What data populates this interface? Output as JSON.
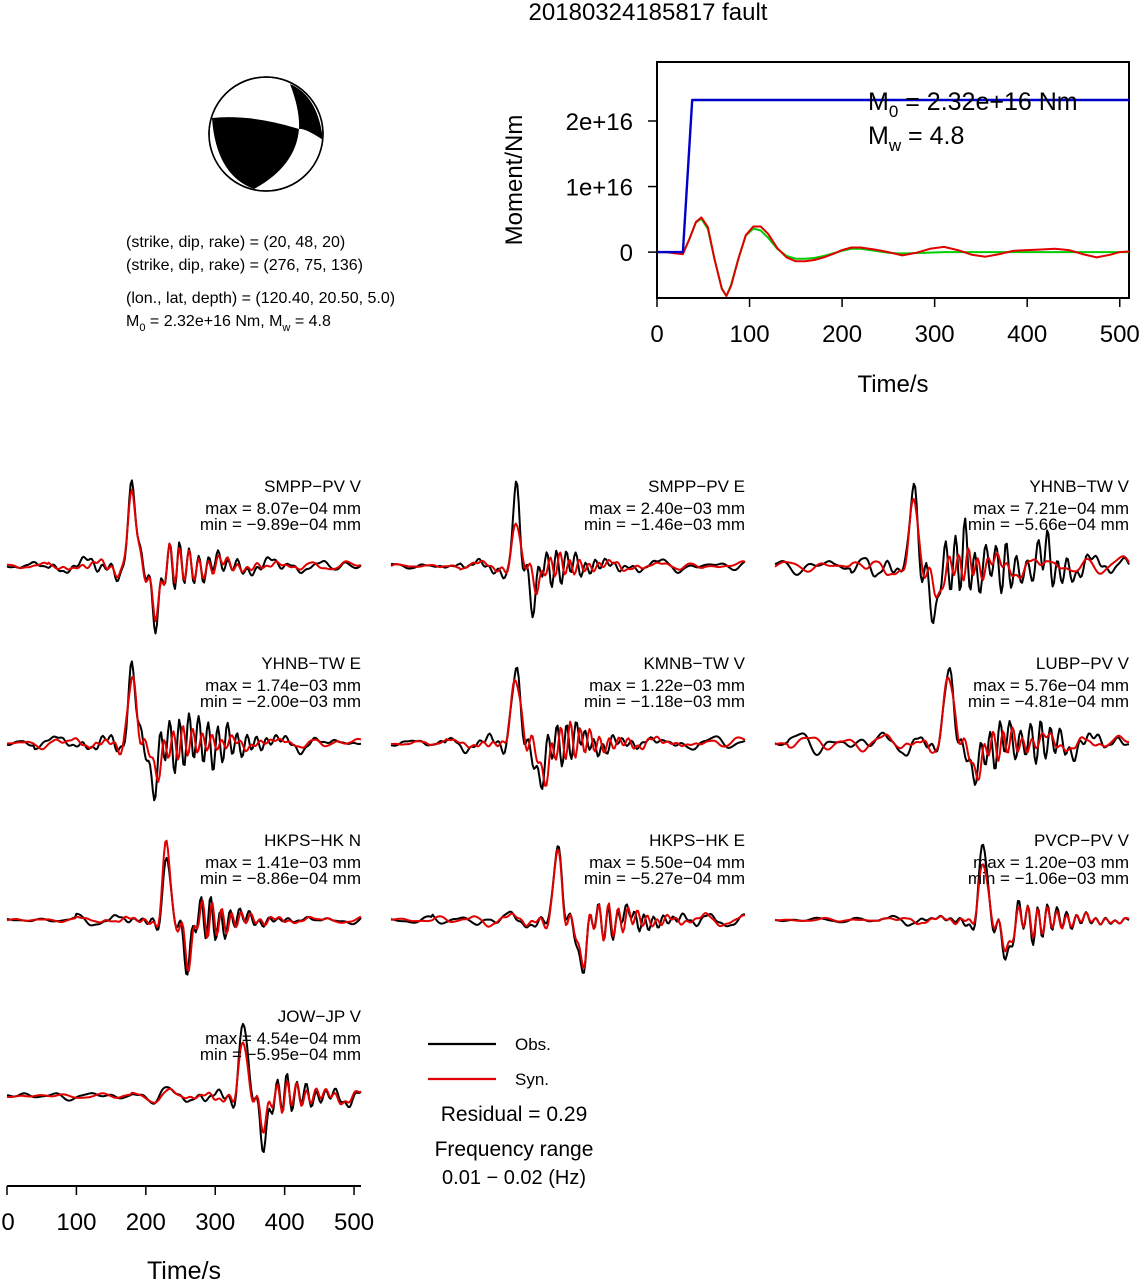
{
  "title": "20180324185817 fault",
  "event": {
    "nodal_plane_1": "(strike, dip, rake) = (20, 48, 20)",
    "nodal_plane_2": "(strike, dip, rake) = (276, 75, 136)",
    "location": "(lon., lat, depth) = (120.40, 20.50, 5.0)",
    "moment_prefix": "M",
    "moment_sub": "0",
    "moment_value": " = 2.32e+16 Nm, M",
    "mw_sub": "w",
    "mw_value": " = 4.8"
  },
  "chart_data": [
    {
      "type": "line",
      "name": "moment-time-function",
      "xlabel": "Time/s",
      "ylabel": "Moment/Nm",
      "xlim": [
        0,
        510
      ],
      "ylim": [
        -7000000000000000.0,
        2.9e+16
      ],
      "xticks": [
        0,
        100,
        200,
        300,
        400,
        500
      ],
      "yticks": [
        0,
        1e+16,
        2e+16
      ],
      "ytick_labels": [
        "0",
        "1e+16",
        "2e+16"
      ],
      "annotation_m0": {
        "prefix": "M",
        "sub": "0",
        "text": " = 2.32e+16 Nm"
      },
      "annotation_mw": {
        "prefix": "M",
        "sub": "w",
        "text": " = 4.8"
      },
      "colors": {
        "cumulative": "#0000cc",
        "observed": "#00cc00",
        "synthetic": "#e00000"
      },
      "series": [
        {
          "key": "cumulative",
          "x": [
            0,
            20,
            28,
            38,
            510
          ],
          "y": [
            0,
            0,
            0,
            2.32e+16,
            2.32e+16
          ]
        },
        {
          "key": "observed",
          "x": [
            0,
            10,
            20,
            28,
            35,
            42,
            48,
            55,
            62,
            70,
            75,
            80,
            88,
            96,
            104,
            112,
            120,
            130,
            140,
            150,
            160,
            170,
            180,
            190,
            200,
            210,
            220,
            235,
            250,
            260,
            270,
            290,
            310,
            330,
            360,
            400,
            450,
            510
          ],
          "y": [
            0,
            0,
            -100000000000000.0,
            -200000000000000.0,
            2000000000000000.0,
            4500000000000000.0,
            5100000000000000.0,
            3500000000000000.0,
            -1000000000000000.0,
            -5500000000000000.0,
            -6700000000000000.0,
            -5000000000000000.0,
            -1000000000000000.0,
            2500000000000000.0,
            3600000000000000.0,
            3300000000000000.0,
            2200000000000000.0,
            500000000000000.0,
            -600000000000000.0,
            -1000000000000000.0,
            -1000000000000000.0,
            -900000000000000.0,
            -600000000000000.0,
            -200000000000000.0,
            200000000000000.0,
            500000000000000.0,
            500000000000000.0,
            200000000000000.0,
            -100000000000000.0,
            -200000000000000.0,
            -200000000000000.0,
            -100000000000000.0,
            0,
            0,
            0,
            0,
            0,
            0
          ]
        },
        {
          "key": "synthetic",
          "x": [
            0,
            10,
            20,
            28,
            35,
            42,
            48,
            55,
            62,
            70,
            75,
            80,
            88,
            96,
            104,
            112,
            120,
            130,
            140,
            150,
            160,
            170,
            180,
            190,
            200,
            210,
            220,
            235,
            250,
            265,
            280,
            295,
            310,
            325,
            340,
            355,
            370,
            385,
            400,
            415,
            430,
            445,
            460,
            475,
            490,
            500,
            510
          ],
          "y": [
            0,
            0,
            -200000000000000.0,
            -300000000000000.0,
            2000000000000000.0,
            4600000000000000.0,
            5300000000000000.0,
            3800000000000000.0,
            -1000000000000000.0,
            -5600000000000000.0,
            -6700000000000000.0,
            -5200000000000000.0,
            -1000000000000000.0,
            2600000000000000.0,
            3900000000000000.0,
            3900000000000000.0,
            2800000000000000.0,
            600000000000000.0,
            -800000000000000.0,
            -1400000000000000.0,
            -1400000000000000.0,
            -1200000000000000.0,
            -800000000000000.0,
            -300000000000000.0,
            300000000000000.0,
            700000000000000.0,
            700000000000000.0,
            400000000000000.0,
            0,
            -500000000000000.0,
            -100000000000000.0,
            500000000000000.0,
            800000000000000.0,
            300000000000000.0,
            -400000000000000.0,
            -700000000000000.0,
            -300000000000000.0,
            200000000000000.0,
            300000000000000.0,
            400000000000000.0,
            500000000000000.0,
            300000000000000.0,
            -300000000000000.0,
            -800000000000000.0,
            -400000000000000.0,
            0,
            100000000000000.0
          ]
        }
      ]
    },
    {
      "type": "line",
      "name": "waveform-fits",
      "xlabel": "Time/s",
      "xlim": [
        0,
        510
      ],
      "xticks": [
        0,
        100,
        200,
        300,
        400,
        500
      ],
      "legend": {
        "observed": "Obs.",
        "synthetic": "Syn.",
        "placement": "bottom-center"
      },
      "residual": "Residual = 0.29",
      "frequency_label": "Frequency range",
      "frequency_range": "0.01 − 0.02 (Hz)",
      "colors": {
        "observed": "#000000",
        "synthetic": "#e00000"
      },
      "traces": [
        {
          "station": "SMPP−PV V",
          "max": "max = 8.07e−04 mm",
          "min": "min = −9.89e−04 mm",
          "comps_obs": [
            [
              180,
              0.95,
              13,
              0
            ],
            [
              215,
              -0.65,
              14,
              0
            ],
            [
              245,
              0.3,
              20,
              1
            ]
          ],
          "comps_syn": [
            [
              180,
              0.85,
              14,
              0
            ],
            [
              215,
              -0.55,
              15,
              0
            ],
            [
              245,
              0.25,
              18,
              1
            ]
          ],
          "noise": 0.07,
          "onset": 60,
          "seed": 1
        },
        {
          "station": "SMPP−PV E",
          "max": "max = 2.40e−03 mm",
          "min": "min = −1.46e−03 mm",
          "comps_obs": [
            [
              180,
              0.95,
              10,
              0
            ],
            [
              205,
              -0.55,
              10,
              0
            ],
            [
              235,
              0.25,
              16,
              1
            ]
          ],
          "comps_syn": [
            [
              180,
              0.6,
              11,
              0
            ],
            [
              210,
              -0.3,
              12,
              0
            ],
            [
              240,
              0.15,
              16,
              1
            ]
          ],
          "noise": 0.06,
          "onset": 100,
          "seed": 2
        },
        {
          "station": "YHNB−TW V",
          "max": "max = 7.21e−04 mm",
          "min": "min = −5.66e−04 mm",
          "comps_obs": [
            [
              200,
              0.9,
              10,
              0
            ],
            [
              230,
              -0.6,
              10,
              0
            ],
            [
              270,
              0.5,
              14,
              1
            ],
            [
              330,
              0.4,
              12,
              1
            ],
            [
              390,
              0.35,
              12,
              1
            ]
          ],
          "comps_syn": [
            [
              200,
              0.7,
              12,
              0
            ],
            [
              235,
              -0.4,
              12,
              0
            ],
            [
              275,
              0.2,
              14,
              1
            ]
          ],
          "noise": 0.14,
          "onset": 110,
          "seed": 3
        },
        {
          "station": "YHNB−TW E",
          "max": "max = 1.74e−03 mm",
          "min": "min = −2.00e−03 mm",
          "comps_obs": [
            [
              180,
              0.95,
              12,
              0
            ],
            [
              210,
              -0.55,
              12,
              0
            ],
            [
              245,
              0.3,
              18,
              1
            ],
            [
              300,
              0.2,
              16,
              1
            ]
          ],
          "comps_syn": [
            [
              180,
              0.8,
              13,
              0
            ],
            [
              215,
              -0.45,
              13,
              0
            ],
            [
              250,
              0.22,
              18,
              1
            ]
          ],
          "noise": 0.07,
          "onset": 40,
          "seed": 4
        },
        {
          "station": "KMNB−TW V",
          "max": "max = 1.22e−03 mm",
          "min": "min = −1.18e−03 mm",
          "comps_obs": [
            [
              180,
              0.95,
              13,
              0
            ],
            [
              215,
              -0.5,
              14,
              0
            ],
            [
              250,
              0.35,
              18,
              1
            ],
            [
              300,
              0.2,
              16,
              1
            ]
          ],
          "comps_syn": [
            [
              180,
              0.85,
              14,
              0
            ],
            [
              220,
              -0.45,
              15,
              0
            ],
            [
              255,
              0.25,
              18,
              1
            ]
          ],
          "noise": 0.07,
          "onset": 80,
          "seed": 5
        },
        {
          "station": "LUBP−PV V",
          "max": "max = 5.76e−04 mm",
          "min": "min = −4.81e−04 mm",
          "comps_obs": [
            [
              250,
              0.9,
              14,
              0
            ],
            [
              285,
              -0.5,
              14,
              0
            ],
            [
              320,
              0.3,
              16,
              1
            ],
            [
              380,
              0.3,
              14,
              1
            ]
          ],
          "comps_syn": [
            [
              250,
              0.85,
              15,
              0
            ],
            [
              290,
              -0.45,
              15,
              0
            ],
            [
              325,
              0.2,
              16,
              1
            ]
          ],
          "noise": 0.1,
          "onset": 20,
          "seed": 6
        },
        {
          "station": "HKPS−HK N",
          "max": "max = 1.41e−03 mm",
          "min": "min = −8.86e−04 mm",
          "comps_obs": [
            [
              230,
              0.85,
              10,
              0
            ],
            [
              260,
              -0.55,
              12,
              0
            ],
            [
              290,
              0.3,
              14,
              1
            ]
          ],
          "comps_syn": [
            [
              230,
              1.0,
              11,
              0
            ],
            [
              262,
              -0.55,
              12,
              0
            ],
            [
              292,
              0.25,
              14,
              1
            ]
          ],
          "noise": 0.05,
          "onset": 100,
          "seed": 7
        },
        {
          "station": "HKPS−HK E",
          "max": "max = 5.50e−04 mm",
          "min": "min = −5.27e−04 mm",
          "comps_obs": [
            [
              240,
              0.95,
              12,
              0
            ],
            [
              275,
              -0.6,
              14,
              0
            ],
            [
              310,
              0.3,
              16,
              1
            ],
            [
              360,
              0.2,
              16,
              1
            ]
          ],
          "comps_syn": [
            [
              240,
              0.9,
              12,
              0
            ],
            [
              275,
              -0.55,
              14,
              0
            ],
            [
              310,
              0.25,
              16,
              1
            ]
          ],
          "noise": 0.07,
          "onset": 60,
          "seed": 8
        },
        {
          "station": "PVCP−PV V",
          "max": "max = 1.20e−03 mm",
          "min": "min = −1.06e−03 mm",
          "comps_obs": [
            [
              300,
              0.95,
              12,
              0
            ],
            [
              335,
              -0.5,
              14,
              0
            ],
            [
              375,
              0.25,
              18,
              1
            ]
          ],
          "comps_syn": [
            [
              300,
              0.75,
              13,
              0
            ],
            [
              335,
              -0.4,
              14,
              0
            ],
            [
              375,
              0.2,
              18,
              1
            ]
          ],
          "noise": 0.05,
          "onset": 150,
          "seed": 9
        },
        {
          "station": "JOW−JP V",
          "max": "max = 4.54e−04 mm",
          "min": "min = −5.95e−04 mm",
          "comps_obs": [
            [
              340,
              0.95,
              11,
              0
            ],
            [
              370,
              -0.5,
              12,
              0
            ],
            [
              400,
              0.25,
              16,
              1
            ]
          ],
          "comps_syn": [
            [
              340,
              0.7,
              11,
              0
            ],
            [
              370,
              -0.35,
              12,
              0
            ],
            [
              400,
              0.2,
              16,
              1
            ]
          ],
          "noise": 0.08,
          "onset": 180,
          "seed": 10
        }
      ]
    }
  ]
}
